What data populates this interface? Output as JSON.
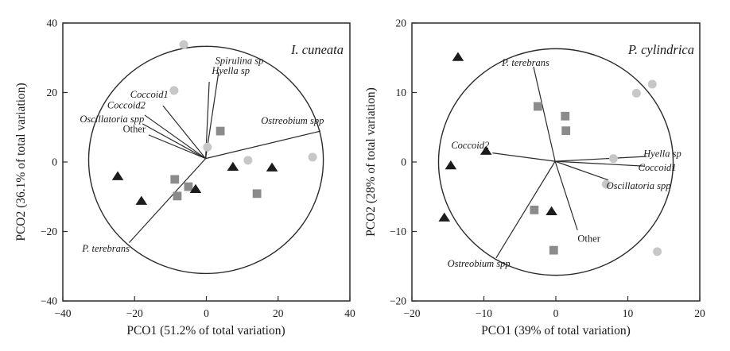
{
  "figure": {
    "background": "#ffffff",
    "text_color": "#1a1a1a",
    "line_color": "#2a2a2a",
    "marker_colors": {
      "circle": "#c7c7c7",
      "square": "#8b8b8b",
      "triangle": "#1c1c1c"
    }
  },
  "chart_data": [
    {
      "type": "scatter",
      "title": "I. cuneata",
      "xlabel": "PCO1 (51.2% of total variation)",
      "ylabel": "PCO2 (36.1% of total variation)",
      "xlim": [
        -40,
        40
      ],
      "ylim": [
        -40,
        40
      ],
      "xticks": [
        -40,
        -20,
        0,
        20,
        40
      ],
      "yticks": [
        -40,
        -20,
        0,
        20,
        40
      ],
      "grid": false,
      "correlation_circle": {
        "cx": -0.1,
        "cy": 0.6,
        "r": 32.7
      },
      "vector_origin": [
        -0.2,
        1.0
      ],
      "vectors": [
        {
          "label": "Spirulina sp",
          "italic": true,
          "tip": [
            3.4,
            25.8
          ],
          "label_pos": [
            9.2,
            29.1
          ]
        },
        {
          "label": "Hyella sp",
          "italic": true,
          "tip": [
            0.8,
            23.1
          ],
          "label_pos": [
            6.8,
            26.3
          ]
        },
        {
          "label": "Coccoid1",
          "italic": true,
          "tip": [
            -12.1,
            16.2
          ],
          "label_pos": [
            -15.9,
            19.4
          ]
        },
        {
          "label": "Coccoid2",
          "italic": true,
          "tip": [
            -17.2,
            13.5
          ],
          "label_pos": [
            -22.3,
            16.4
          ]
        },
        {
          "label": "Oscillatoria spp",
          "italic": true,
          "tip": [
            -17.8,
            11.0
          ],
          "label_pos": [
            -26.3,
            12.3
          ]
        },
        {
          "label": "Other",
          "italic": false,
          "tip": [
            -16.1,
            7.8
          ],
          "label_pos": [
            -20.1,
            9.5
          ]
        },
        {
          "label": "Ostreobium spp",
          "italic": true,
          "tip": [
            31.8,
            8.9
          ],
          "label_pos": [
            24.0,
            11.9
          ]
        },
        {
          "label": "P. terebrans",
          "italic": true,
          "tip": [
            -21.5,
            -23.2
          ],
          "label_pos": [
            -28.0,
            -24.9
          ]
        }
      ],
      "series": [
        {
          "name": "light-circles",
          "marker": "circle",
          "points": [
            [
              -6.3,
              33.8
            ],
            [
              -9.0,
              20.6
            ],
            [
              0.3,
              4.3
            ],
            [
              11.6,
              0.5
            ],
            [
              29.6,
              1.4
            ]
          ]
        },
        {
          "name": "grey-squares",
          "marker": "square",
          "points": [
            [
              3.9,
              8.9
            ],
            [
              -8.8,
              -5.0
            ],
            [
              -5.0,
              -7.1
            ],
            [
              -8.1,
              -9.8
            ],
            [
              14.1,
              -9.1
            ]
          ]
        },
        {
          "name": "black-triangles",
          "marker": "triangle",
          "points": [
            [
              -24.7,
              -4.1
            ],
            [
              7.4,
              -1.4
            ],
            [
              18.3,
              -1.6
            ],
            [
              -3.0,
              -7.8
            ],
            [
              -18.1,
              -11.2
            ]
          ]
        }
      ]
    },
    {
      "type": "scatter",
      "title": "P. cylindrica",
      "xlabel": "PCO1 (39% of total variation)",
      "ylabel": "PCO2 (28% of total variation)",
      "xlim": [
        -20,
        20
      ],
      "ylim": [
        -20,
        20
      ],
      "xticks": [
        -20,
        -10,
        0,
        10,
        20
      ],
      "yticks": [
        -20,
        -10,
        0,
        10,
        20
      ],
      "grid": false,
      "correlation_circle": {
        "cx": 0,
        "cy": 0,
        "r": 16.3
      },
      "vector_origin": [
        -0.1,
        0.1
      ],
      "vectors": [
        {
          "label": "P. terebrans",
          "italic": true,
          "tip": [
            -3.1,
            13.7
          ],
          "label_pos": [
            -4.2,
            14.3
          ]
        },
        {
          "label": "Coccoid2",
          "italic": true,
          "tip": [
            -8.8,
            1.3
          ],
          "label_pos": [
            -11.9,
            2.4
          ]
        },
        {
          "label": "Hyella sp",
          "italic": true,
          "tip": [
            12.6,
            0.8
          ],
          "label_pos": [
            14.8,
            1.2
          ]
        },
        {
          "label": "Coccoid1",
          "italic": true,
          "tip": [
            12.4,
            -0.6
          ],
          "label_pos": [
            14.1,
            -0.8
          ]
        },
        {
          "label": "Oscillatoria spp",
          "italic": true,
          "tip": [
            7.3,
            -2.6
          ],
          "label_pos": [
            11.5,
            -3.4
          ]
        },
        {
          "label": "Other",
          "italic": false,
          "tip": [
            3.0,
            -9.8
          ],
          "label_pos": [
            4.6,
            -11.0
          ]
        },
        {
          "label": "Ostreobium spp",
          "italic": true,
          "tip": [
            -8.3,
            -13.8
          ],
          "label_pos": [
            -10.7,
            -14.6
          ]
        }
      ],
      "series": [
        {
          "name": "light-circles",
          "marker": "circle",
          "points": [
            [
              11.2,
              9.9
            ],
            [
              13.4,
              11.2
            ],
            [
              8.0,
              0.5
            ],
            [
              7.0,
              -3.2
            ],
            [
              14.1,
              -12.9
            ]
          ]
        },
        {
          "name": "grey-squares",
          "marker": "square",
          "points": [
            [
              -2.5,
              8.0
            ],
            [
              1.3,
              6.6
            ],
            [
              1.4,
              4.5
            ],
            [
              -3.0,
              -6.9
            ],
            [
              -0.3,
              -12.7
            ]
          ]
        },
        {
          "name": "black-triangles",
          "marker": "triangle",
          "points": [
            [
              -13.6,
              15.1
            ],
            [
              -9.7,
              1.6
            ],
            [
              -14.6,
              -0.5
            ],
            [
              -15.5,
              -8.0
            ],
            [
              -0.6,
              -7.1
            ]
          ]
        }
      ]
    }
  ]
}
